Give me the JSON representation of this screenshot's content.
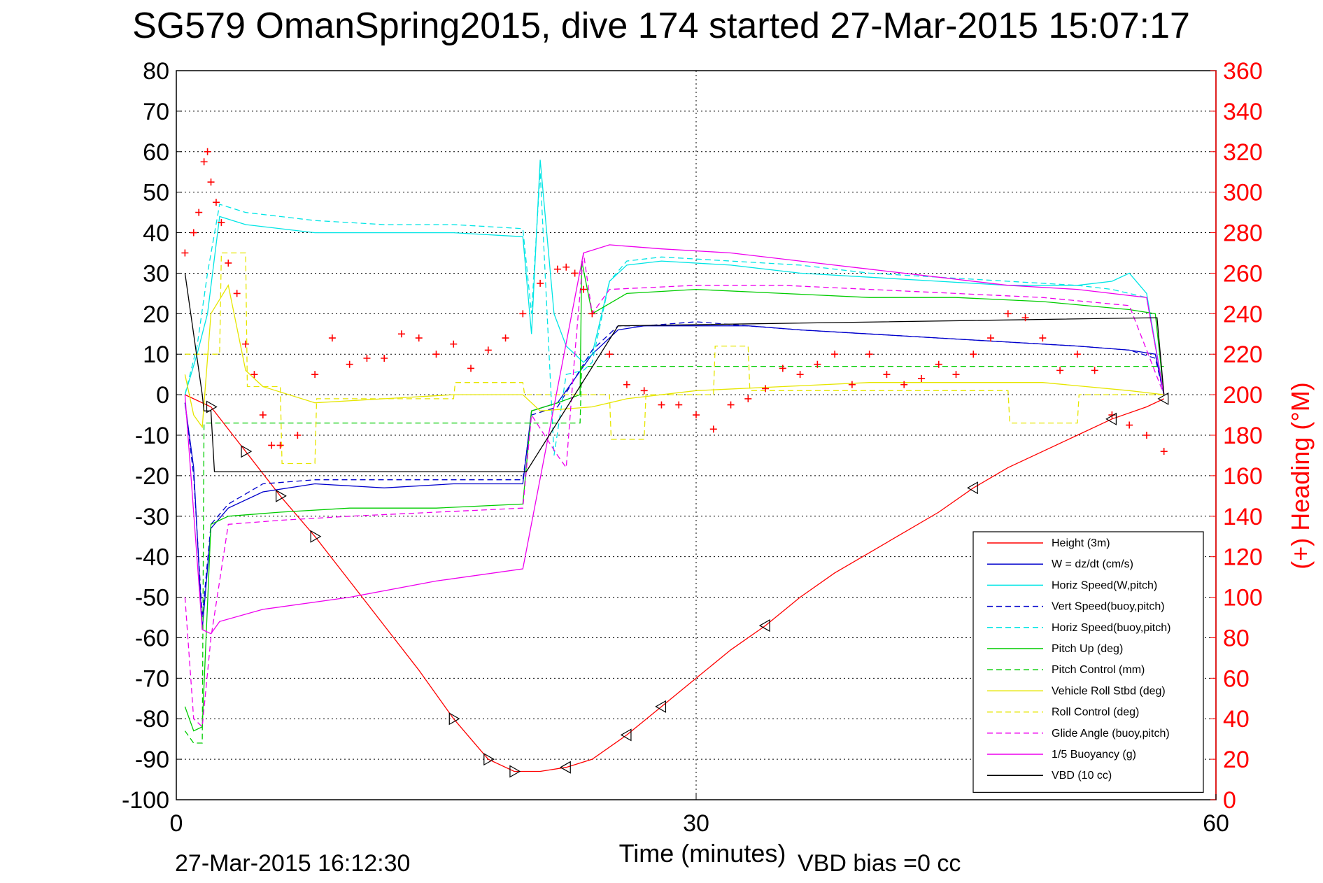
{
  "title": "SG579 OmanSpring2015, dive 174 started 27-Mar-2015 15:07:17",
  "footer_timestamp": "27-Mar-2015 16:12:30",
  "footer_vbd": "VBD bias =0 cc",
  "colors": {
    "red": "#ff0000",
    "blue": "#0000cc",
    "cyan": "#00e5e5",
    "green": "#00cc00",
    "yellow": "#e6e600",
    "magenta": "#ee00ee",
    "black": "#000000"
  },
  "chart_data": {
    "type": "line",
    "xlabel": "Time (minutes)",
    "ylabel": "",
    "ylabel_right": "(+) Heading (°M)",
    "xlim": [
      0,
      60
    ],
    "ylim": [
      -100,
      80
    ],
    "ylim_right": [
      0,
      360
    ],
    "x_ticks": [
      "0",
      "30",
      "60"
    ],
    "y_ticks": [
      "80",
      "70",
      "60",
      "50",
      "40",
      "30",
      "20",
      "10",
      "0",
      "-10",
      "-20",
      "-30",
      "-40",
      "-50",
      "-60",
      "-70",
      "-80",
      "-90",
      "-100"
    ],
    "y_ticks_right": [
      "360",
      "340",
      "320",
      "300",
      "280",
      "260",
      "240",
      "220",
      "200",
      "180",
      "160",
      "140",
      "120",
      "100",
      "80",
      "60",
      "40",
      "20",
      "0"
    ],
    "grid": true,
    "legend_position": "bottom-right",
    "series": [
      {
        "name": "Height (3m)",
        "color": "red",
        "dash": "solid",
        "x": [
          0.5,
          2,
          4,
          6,
          8,
          10,
          12,
          14,
          16,
          18,
          19.5,
          21,
          22.5,
          24,
          26,
          28,
          30,
          32,
          34,
          36,
          38,
          40,
          42,
          44,
          46,
          48,
          50,
          52,
          54,
          56,
          57
        ],
        "y": [
          0,
          -3,
          -14,
          -25,
          -35,
          -46,
          -57,
          -68,
          -80,
          -90,
          -93,
          -93,
          -92,
          -90,
          -84,
          -77,
          -70,
          -63,
          -57,
          -50,
          -44,
          -39,
          -34,
          -29,
          -23,
          -18,
          -14,
          -10,
          -6,
          -3,
          -1
        ]
      },
      {
        "name": "W = dz/dt (cm/s)",
        "color": "blue",
        "dash": "solid",
        "x": [
          0.5,
          1,
          1.5,
          2,
          3,
          5,
          8,
          12,
          16,
          20,
          20.5,
          22,
          24,
          25.5,
          27,
          30,
          33,
          36,
          40,
          44,
          48,
          52,
          55,
          56.5,
          57
        ],
        "y": [
          -2,
          -18,
          -58,
          -33,
          -28,
          -24,
          -22,
          -23,
          -22,
          -22,
          -4,
          -2,
          10,
          16,
          17,
          17,
          17,
          16,
          15,
          14,
          13,
          12,
          11,
          10,
          0
        ]
      },
      {
        "name": "Horiz Speed(W,pitch)",
        "color": "cyan",
        "dash": "solid",
        "x": [
          0.5,
          1.2,
          1.8,
          2.5,
          4,
          8,
          12,
          16,
          20,
          20.5,
          21,
          21.8,
          22.5,
          23.5,
          24,
          25,
          26,
          28,
          32,
          36,
          40,
          44,
          48,
          52,
          54,
          55,
          56,
          57
        ],
        "y": [
          0,
          10,
          20,
          44,
          42,
          40,
          40,
          40,
          39,
          15,
          58,
          20,
          12,
          8,
          10,
          28,
          32,
          33,
          32,
          30,
          29,
          28,
          27,
          27,
          28,
          30,
          25,
          0
        ]
      },
      {
        "name": "Vert Speed(buoy,pitch)",
        "color": "blue",
        "dash": "dashed",
        "x": [
          0.5,
          1,
          1.5,
          2,
          3,
          5,
          8,
          12,
          16,
          20,
          20.5,
          22,
          24,
          25.5,
          27,
          30,
          33,
          36,
          40,
          44,
          48,
          52,
          55,
          56.5,
          57
        ],
        "y": [
          -2,
          -20,
          -55,
          -32,
          -27,
          -22,
          -21,
          -21,
          -21,
          -21,
          -5,
          -3,
          11,
          17,
          17,
          18,
          17,
          16,
          15,
          14,
          13,
          12,
          11,
          9,
          0
        ]
      },
      {
        "name": "Horiz Speed(buoy,pitch)",
        "color": "cyan",
        "dash": "dashed",
        "x": [
          0.5,
          1.2,
          1.8,
          2.5,
          4,
          8,
          12,
          16,
          20,
          20.5,
          21,
          21.8,
          22.5,
          23.5,
          24,
          25,
          26,
          28,
          32,
          36,
          40,
          44,
          48,
          52,
          54,
          56,
          57
        ],
        "y": [
          0,
          12,
          30,
          47,
          45,
          43,
          42,
          42,
          41,
          20,
          55,
          -15,
          5,
          6,
          8,
          28,
          33,
          34,
          33,
          32,
          30,
          29,
          28,
          27,
          26,
          24,
          0
        ]
      },
      {
        "name": "Pitch Up (deg)",
        "color": "green",
        "dash": "solid",
        "x": [
          0.5,
          1,
          1.5,
          2,
          3,
          6,
          10,
          15,
          20,
          20.5,
          22,
          23.3,
          23.4,
          24,
          26,
          30,
          35,
          40,
          45,
          50,
          55,
          56.5,
          57
        ],
        "y": [
          -77,
          -83,
          -82,
          -32,
          -30,
          -29,
          -28,
          -28,
          -27,
          -4,
          -2,
          0,
          33,
          20,
          25,
          26,
          25,
          24,
          24,
          23,
          21,
          20,
          0
        ]
      },
      {
        "name": "Pitch Control (mm)",
        "color": "green",
        "dash": "dashed",
        "x": [
          0.5,
          1,
          1.5,
          1.6,
          2,
          8,
          16,
          20,
          20.1,
          23.3,
          23.4,
          57
        ],
        "y": [
          -83,
          -86,
          -86,
          -7,
          -7,
          -7,
          -7,
          -7,
          -7,
          -7,
          7,
          7
        ]
      },
      {
        "name": "Vehicle Roll Stbd (deg)",
        "color": "yellow",
        "dash": "solid",
        "x": [
          0.5,
          1,
          1.5,
          2,
          3,
          4,
          5,
          8,
          12,
          16,
          20,
          21,
          24,
          26,
          30,
          35,
          40,
          45,
          50,
          55,
          57
        ],
        "y": [
          5,
          -5,
          -8,
          20,
          27,
          6,
          2,
          -2,
          -1,
          0,
          0,
          -4,
          -3,
          -1,
          1,
          2,
          3,
          3,
          3,
          1,
          0
        ]
      },
      {
        "name": "Roll Control (deg)",
        "color": "yellow",
        "dash": "dashed",
        "x": [
          0.5,
          2.5,
          2.6,
          4,
          4.1,
          6,
          6.1,
          8,
          8.1,
          16,
          16.1,
          20,
          20.1,
          25,
          25.1,
          27,
          27.1,
          31,
          31.1,
          33,
          33.1,
          48,
          48.1,
          52,
          52.1,
          57
        ],
        "y": [
          10,
          10,
          35,
          35,
          2,
          2,
          -17,
          -17,
          -1,
          -1,
          3,
          3,
          0,
          0,
          -11,
          -11,
          0,
          0,
          12,
          12,
          1,
          1,
          -7,
          -7,
          0,
          0
        ]
      },
      {
        "name": "Glide Angle (buoy,pitch)",
        "color": "magenta",
        "dash": "dashed",
        "x": [
          0.5,
          1,
          1.5,
          2,
          3,
          6,
          10,
          15,
          20,
          20.5,
          22,
          22.5,
          23,
          23.5,
          24,
          25,
          30,
          35,
          40,
          45,
          50,
          55,
          57
        ],
        "y": [
          -50,
          -80,
          -82,
          -60,
          -32,
          -31,
          -30,
          -29,
          -28,
          -5,
          -15,
          -18,
          10,
          35,
          20,
          26,
          27,
          27,
          26,
          25,
          24,
          22,
          0
        ]
      },
      {
        "name": "1/5 Buoyancy (g)",
        "color": "magenta",
        "dash": "solid",
        "x": [
          0.5,
          1.5,
          2,
          2.5,
          5,
          10,
          15,
          20,
          23.5,
          25,
          28,
          32,
          36,
          40,
          44,
          48,
          52,
          56,
          57
        ],
        "y": [
          0,
          -58,
          -59,
          -56,
          -53,
          -50,
          -46,
          -43,
          35,
          37,
          36,
          35,
          33,
          31,
          29,
          27,
          26,
          24,
          0
        ]
      },
      {
        "name": "VBD (10 cc)",
        "color": "black",
        "dash": "solid",
        "x": [
          0.5,
          1.5,
          1.6,
          2,
          2.2,
          20,
          20.2,
          25.5,
          56.5,
          56.6,
          57
        ],
        "y": [
          30,
          0,
          -4,
          -4,
          -19,
          -19,
          -19,
          17,
          19,
          19,
          0
        ]
      },
      {
        "name": "Heading",
        "axis": "right",
        "color": "red",
        "marker": "plus",
        "x": [
          0.5,
          1,
          1.3,
          1.6,
          1.8,
          2,
          2.3,
          2.6,
          3,
          3.5,
          4,
          4.5,
          5,
          5.5,
          6,
          7,
          8,
          9,
          10,
          11,
          12,
          13,
          14,
          15,
          16,
          17,
          18,
          19,
          20,
          21,
          22,
          22.5,
          23,
          23.5,
          24,
          25,
          26,
          27,
          28,
          29,
          30,
          31,
          32,
          33,
          34,
          35,
          36,
          37,
          38,
          39,
          40,
          41,
          42,
          43,
          44,
          45,
          46,
          47,
          48,
          49,
          50,
          51,
          52,
          53,
          54,
          55,
          56,
          57
        ],
        "y": [
          270,
          280,
          290,
          315,
          320,
          305,
          295,
          285,
          265,
          250,
          225,
          210,
          190,
          175,
          175,
          180,
          210,
          228,
          215,
          218,
          218,
          230,
          228,
          220,
          225,
          213,
          222,
          228,
          240,
          255,
          262,
          263,
          260,
          252,
          240,
          220,
          205,
          202,
          195,
          195,
          190,
          183,
          195,
          198,
          203,
          213,
          210,
          215,
          220,
          205,
          220,
          210,
          205,
          208,
          215,
          210,
          220,
          228,
          240,
          238,
          228,
          212,
          220,
          212,
          190,
          185,
          180,
          172
        ]
      }
    ]
  }
}
